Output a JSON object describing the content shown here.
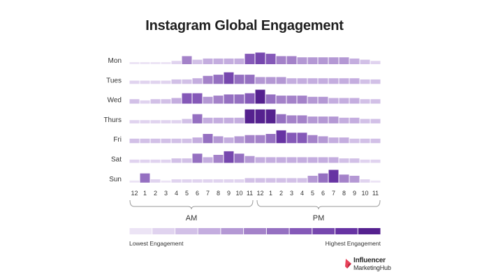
{
  "chart_data": {
    "type": "heatmap",
    "title": "Instagram Global Engagement",
    "days": [
      "Mon",
      "Tues",
      "Wed",
      "Thurs",
      "Fri",
      "Sat",
      "Sun"
    ],
    "hours": [
      "12",
      "1",
      "2",
      "3",
      "4",
      "5",
      "6",
      "7",
      "8",
      "9",
      "10",
      "11",
      "12",
      "1",
      "2",
      "3",
      "4",
      "5",
      "6",
      "7",
      "8",
      "9",
      "10",
      "11"
    ],
    "period_labels": [
      "AM",
      "PM"
    ],
    "scale_levels": 11,
    "values": [
      [
        1,
        1,
        1,
        1,
        2,
        6,
        3,
        4,
        4,
        4,
        4,
        8,
        9,
        8,
        6,
        6,
        5,
        5,
        5,
        5,
        5,
        4,
        3,
        2
      ],
      [
        2,
        2,
        2,
        2,
        3,
        3,
        4,
        6,
        7,
        9,
        7,
        7,
        5,
        5,
        5,
        4,
        4,
        4,
        4,
        4,
        4,
        4,
        3,
        3
      ],
      [
        3,
        2,
        3,
        3,
        4,
        8,
        8,
        5,
        6,
        7,
        7,
        8,
        11,
        7,
        6,
        6,
        6,
        5,
        5,
        4,
        4,
        4,
        3,
        3
      ],
      [
        2,
        2,
        2,
        2,
        2,
        3,
        7,
        4,
        4,
        4,
        4,
        11,
        11,
        11,
        7,
        6,
        6,
        5,
        5,
        5,
        4,
        4,
        3,
        3
      ],
      [
        3,
        3,
        3,
        3,
        3,
        3,
        4,
        7,
        5,
        4,
        5,
        6,
        6,
        7,
        10,
        8,
        8,
        6,
        5,
        4,
        4,
        3,
        3,
        3
      ],
      [
        2,
        2,
        2,
        2,
        3,
        3,
        7,
        4,
        6,
        9,
        7,
        5,
        4,
        4,
        4,
        4,
        4,
        4,
        4,
        4,
        3,
        3,
        2,
        2
      ],
      [
        1,
        7,
        2,
        1,
        2,
        2,
        2,
        2,
        2,
        2,
        2,
        3,
        3,
        3,
        3,
        3,
        3,
        5,
        7,
        10,
        6,
        5,
        2,
        1
      ]
    ],
    "colors": [
      "#ece4f5",
      "#e0d3ef",
      "#d2c0e7",
      "#c4addf",
      "#b498d4",
      "#a482c9",
      "#9570c1",
      "#8559b8",
      "#7647ae",
      "#6733a3",
      "#55218f"
    ],
    "legend": {
      "low_label": "Lowest Engagement",
      "high_label": "Highest Engagement",
      "placement": "bottom"
    },
    "grid": false
  },
  "logo": {
    "line1": "Influencer",
    "line2": "MarketingHub",
    "accent": "#e8425a"
  }
}
